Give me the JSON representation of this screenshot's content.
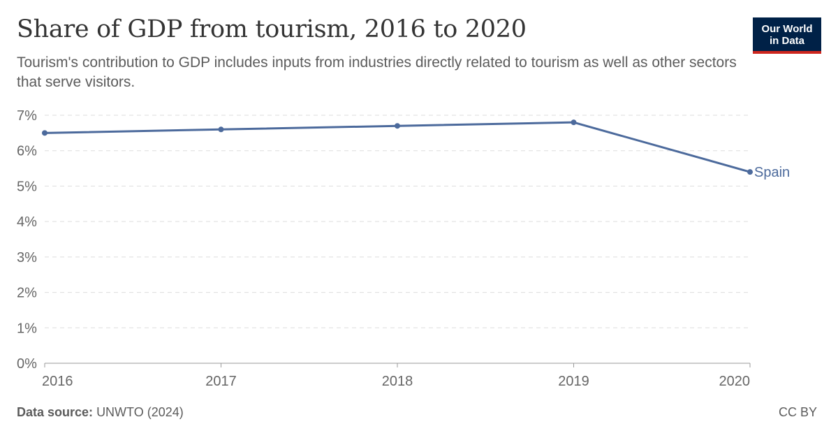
{
  "header": {
    "title": "Share of GDP from tourism, 2016 to 2020",
    "subtitle": "Tourism's contribution to GDP includes inputs from industries directly related to tourism as well as other sectors that serve visitors.",
    "logo_line1": "Our World",
    "logo_line2": "in Data"
  },
  "footer": {
    "source_label": "Data source:",
    "source_value": "UNWTO (2024)",
    "license": "CC BY"
  },
  "colors": {
    "series": "#4c6a9c",
    "grid": "#dddddd",
    "axis": "#999999",
    "tick_text": "#666666"
  },
  "chart_data": {
    "type": "line",
    "title": "Share of GDP from tourism, 2016 to 2020",
    "x": [
      2016,
      2017,
      2018,
      2019,
      2020
    ],
    "xlim": [
      2016,
      2020
    ],
    "ylim": [
      0,
      7
    ],
    "y_ticks": [
      0,
      1,
      2,
      3,
      4,
      5,
      6,
      7
    ],
    "y_tick_labels": [
      "0%",
      "1%",
      "2%",
      "3%",
      "4%",
      "5%",
      "6%",
      "7%"
    ],
    "x_tick_labels": [
      "2016",
      "2017",
      "2018",
      "2019",
      "2020"
    ],
    "grid": "horizontal dashed",
    "legend": "inline label at line end",
    "series": [
      {
        "name": "Spain",
        "values": [
          6.5,
          6.6,
          6.7,
          6.8,
          5.4
        ]
      }
    ]
  }
}
